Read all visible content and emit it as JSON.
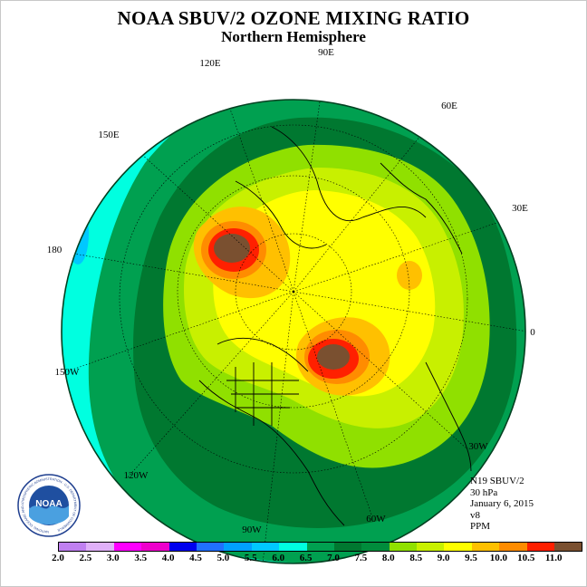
{
  "title": "NOAA SBUV/2 OZONE MIXING RATIO",
  "subtitle": "Northern Hemisphere",
  "longitude_labels": [
    "90E",
    "60E",
    "30E",
    "0",
    "30W",
    "60W",
    "90W",
    "120W",
    "150W",
    "180",
    "150E",
    "120E"
  ],
  "info": {
    "satellite": "N19 SBUV/2",
    "level": "30 hPa",
    "date": "January 6, 2015",
    "version": "v8",
    "unit": "PPM"
  },
  "logo": {
    "text": "NOAA",
    "ring_text": "NATIONAL OCEANIC AND ATMOSPHERIC ADMINISTRATION · U.S. DEPARTMENT OF COMMERCE"
  },
  "colorbar": {
    "ticks": [
      "2.0",
      "2.5",
      "3.0",
      "3.5",
      "4.0",
      "4.5",
      "5.0",
      "5.5",
      "6.0",
      "6.5",
      "7.0",
      "7.5",
      "8.0",
      "8.5",
      "9.0",
      "9.5",
      "10.0",
      "10.5",
      "11.0"
    ],
    "colors": [
      "#c080f0",
      "#e0b0f8",
      "#ff00ff",
      "#ee00cc",
      "#0000ee",
      "#2070ff",
      "#00a0ff",
      "#00c8ff",
      "#00ffe0",
      "#00a050",
      "#007830",
      "#008c3c",
      "#90e000",
      "#c8f000",
      "#ffff00",
      "#ffc000",
      "#ff8c00",
      "#ff2000",
      "#7a5030"
    ]
  },
  "map_colors": {
    "c55": "#00c8ff",
    "c60": "#00ffe0",
    "c65": "#00a050",
    "c70": "#007830",
    "c75": "#90e000",
    "c80": "#c8f000",
    "c85": "#ffff00",
    "c90": "#ffc000",
    "c95": "#ff8c00",
    "c100": "#ff2000",
    "c105": "#7a5030"
  }
}
